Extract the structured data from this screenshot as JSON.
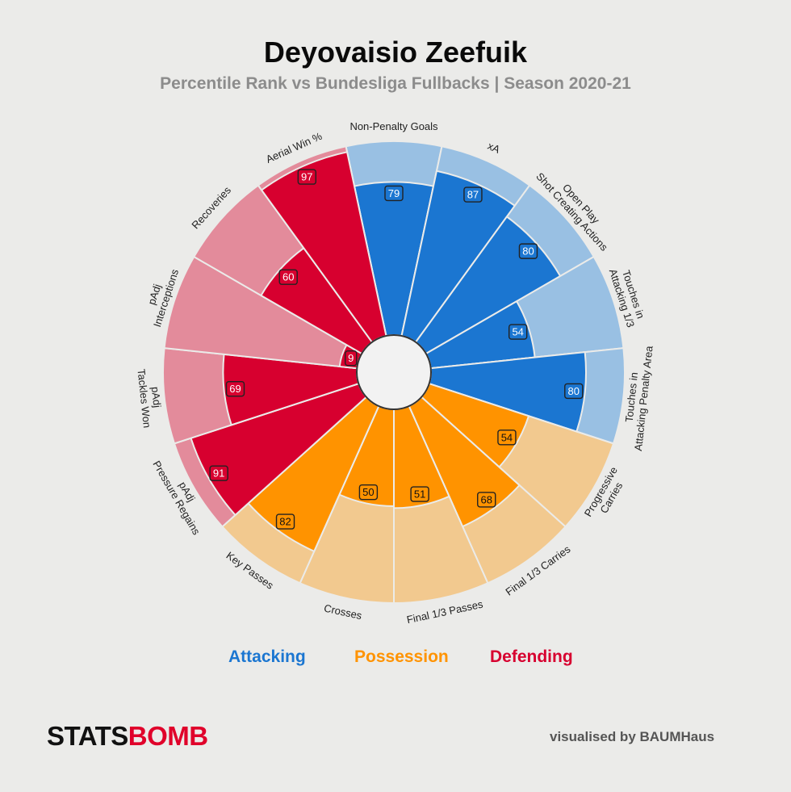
{
  "header": {
    "title": "Deyovaisio Zeefuik",
    "subtitle": "Percentile Rank vs Bundesliga Fullbacks | Season 2020-21"
  },
  "colors": {
    "Attacking": {
      "main": "#1b76d1",
      "light": "#99c0e3"
    },
    "Possession": {
      "main": "#ff9300",
      "light": "#f2c98f"
    },
    "Defending": {
      "main": "#d7002f",
      "light": "#e38b9b"
    },
    "background": "#ebebe9"
  },
  "legend": {
    "attacking": "Attacking",
    "possession": "Possession",
    "defending": "Defending"
  },
  "footer": {
    "logo_stats": "STATS",
    "logo_bomb": "BOMB",
    "credit": "visualised by BAUMHaus"
  },
  "chart_data": {
    "type": "pizza",
    "scale": [
      0,
      100
    ],
    "categories": [
      {
        "label": "Non-Penalty Goals",
        "value": 79,
        "group": "Attacking"
      },
      {
        "label": "xA",
        "value": 87,
        "group": "Attacking"
      },
      {
        "label": "Open Play\nShot Creating Actions",
        "value": 80,
        "group": "Attacking"
      },
      {
        "label": "Touches in\nAttacking 1/3",
        "value": 54,
        "group": "Attacking"
      },
      {
        "label": "Touches in\nAttacking Penalty Area",
        "value": 80,
        "group": "Attacking"
      },
      {
        "label": "Progressive\nCarries",
        "value": 54,
        "group": "Possession"
      },
      {
        "label": "Final 1/3 Carries",
        "value": 68,
        "group": "Possession"
      },
      {
        "label": "Final 1/3 Passes",
        "value": 51,
        "group": "Possession"
      },
      {
        "label": "Crosses",
        "value": 50,
        "group": "Possession"
      },
      {
        "label": "Key Passes",
        "value": 82,
        "group": "Possession"
      },
      {
        "label": "pAdj\nPressure Regains",
        "value": 91,
        "group": "Defending"
      },
      {
        "label": "pAdj\nTackles Won",
        "value": 69,
        "group": "Defending"
      },
      {
        "label": "pAdj\nInterceptions",
        "value": 9,
        "group": "Defending"
      },
      {
        "label": "Recoveries",
        "value": 60,
        "group": "Defending"
      },
      {
        "label": "Aerial Win %",
        "value": 97,
        "group": "Defending"
      }
    ]
  }
}
